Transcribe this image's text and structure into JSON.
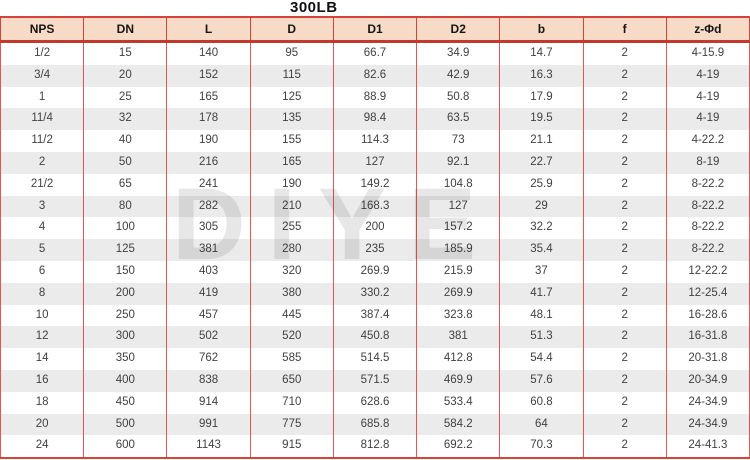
{
  "title": "300LB",
  "watermark": "DIYE",
  "colors": {
    "header_bg": "#f7dbc6",
    "border_red": "#d6433b",
    "border_dark_red": "#c23a2f",
    "stripe_gray": "#ebebeb",
    "text_dark": "#414141",
    "watermark_gray": "#c9c9c9"
  },
  "table": {
    "columns": [
      "NPS",
      "DN",
      "L",
      "D",
      "D1",
      "D2",
      "b",
      "f",
      "z-Φd"
    ],
    "rows": [
      [
        "1/2",
        "15",
        "140",
        "95",
        "66.7",
        "34.9",
        "14.7",
        "2",
        "4-15.9"
      ],
      [
        "3/4",
        "20",
        "152",
        "115",
        "82.6",
        "42.9",
        "16.3",
        "2",
        "4-19"
      ],
      [
        "1",
        "25",
        "165",
        "125",
        "88.9",
        "50.8",
        "17.9",
        "2",
        "4-19"
      ],
      [
        "11/4",
        "32",
        "178",
        "135",
        "98.4",
        "63.5",
        "19.5",
        "2",
        "4-19"
      ],
      [
        "11/2",
        "40",
        "190",
        "155",
        "114.3",
        "73",
        "21.1",
        "2",
        "4-22.2"
      ],
      [
        "2",
        "50",
        "216",
        "165",
        "127",
        "92.1",
        "22.7",
        "2",
        "8-19"
      ],
      [
        "21/2",
        "65",
        "241",
        "190",
        "149.2",
        "104.8",
        "25.9",
        "2",
        "8-22.2"
      ],
      [
        "3",
        "80",
        "282",
        "210",
        "168.3",
        "127",
        "29",
        "2",
        "8-22.2"
      ],
      [
        "4",
        "100",
        "305",
        "255",
        "200",
        "157.2",
        "32.2",
        "2",
        "8-22.2"
      ],
      [
        "5",
        "125",
        "381",
        "280",
        "235",
        "185.9",
        "35.4",
        "2",
        "8-22.2"
      ],
      [
        "6",
        "150",
        "403",
        "320",
        "269.9",
        "215.9",
        "37",
        "2",
        "12-22.2"
      ],
      [
        "8",
        "200",
        "419",
        "380",
        "330.2",
        "269.9",
        "41.7",
        "2",
        "12-25.4"
      ],
      [
        "10",
        "250",
        "457",
        "445",
        "387.4",
        "323.8",
        "48.1",
        "2",
        "16-28.6"
      ],
      [
        "12",
        "300",
        "502",
        "520",
        "450.8",
        "381",
        "51.3",
        "2",
        "16-31.8"
      ],
      [
        "14",
        "350",
        "762",
        "585",
        "514.5",
        "412.8",
        "54.4",
        "2",
        "20-31.8"
      ],
      [
        "16",
        "400",
        "838",
        "650",
        "571.5",
        "469.9",
        "57.6",
        "2",
        "20-34.9"
      ],
      [
        "18",
        "450",
        "914",
        "710",
        "628.6",
        "533.4",
        "60.8",
        "2",
        "24-34.9"
      ],
      [
        "20",
        "500",
        "991",
        "775",
        "685.8",
        "584.2",
        "64",
        "2",
        "24-34.9"
      ],
      [
        "24",
        "600",
        "1143",
        "915",
        "812.8",
        "692.2",
        "70.3",
        "2",
        "24-41.3"
      ]
    ]
  }
}
